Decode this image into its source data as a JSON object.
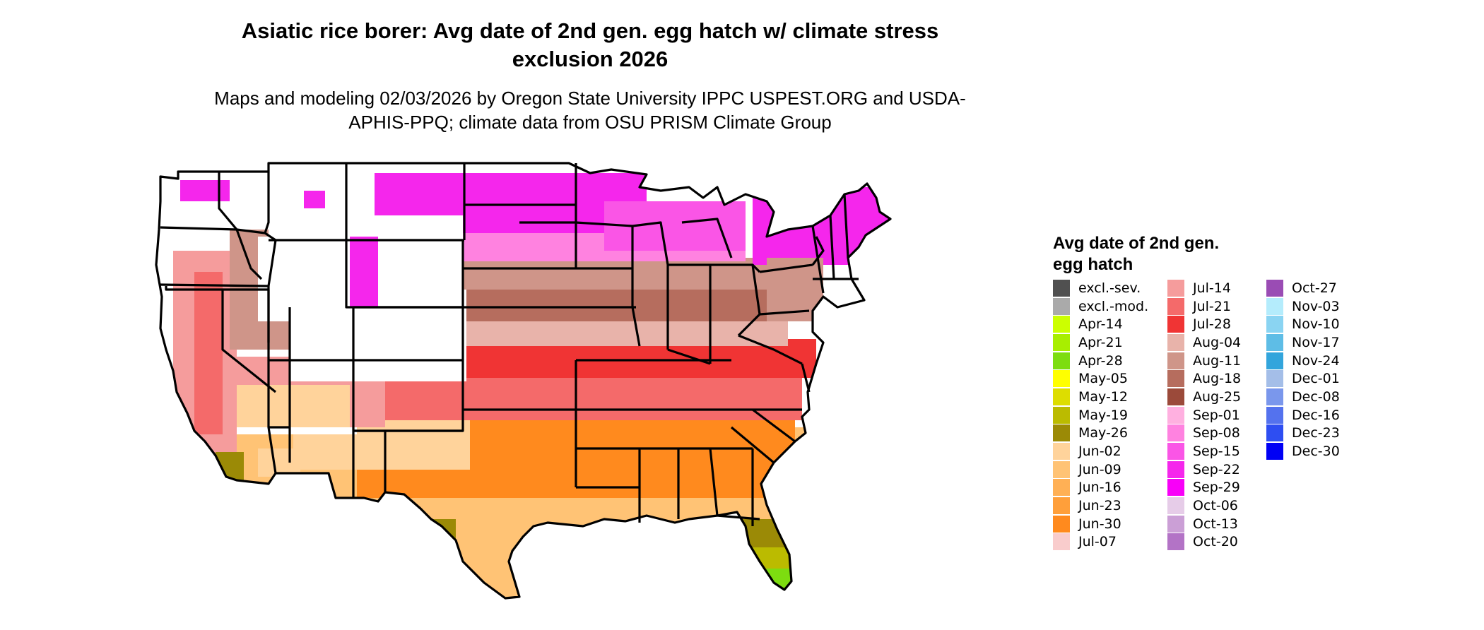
{
  "title": "Asiatic rice borer: Avg date of 2nd gen. egg hatch w/ climate stress exclusion 2026",
  "subtitle": "Maps and modeling 02/03/2026 by Oregon State University IPPC USPEST.ORG and USDA-APHIS-PPQ; climate data from OSU PRISM Climate Group",
  "legend": {
    "title": "Avg date of 2nd gen. egg hatch",
    "columns": [
      [
        {
          "label": "excl.-sev.",
          "color": "#505050"
        },
        {
          "label": "excl.-mod.",
          "color": "#aaaaaa"
        },
        {
          "label": "Apr-14",
          "color": "#ccff00"
        },
        {
          "label": "Apr-21",
          "color": "#a8ee00"
        },
        {
          "label": "Apr-28",
          "color": "#7ddd10"
        },
        {
          "label": "May-05",
          "color": "#ffff00"
        },
        {
          "label": "May-12",
          "color": "#dddd00"
        },
        {
          "label": "May-19",
          "color": "#bbbb00"
        },
        {
          "label": "May-26",
          "color": "#9b8a06"
        },
        {
          "label": "Jun-02",
          "color": "#ffd39b"
        },
        {
          "label": "Jun-09",
          "color": "#ffc375"
        },
        {
          "label": "Jun-16",
          "color": "#ffb055"
        },
        {
          "label": "Jun-23",
          "color": "#ff9f3a"
        },
        {
          "label": "Jun-30",
          "color": "#ff8a1e"
        },
        {
          "label": "Jul-07",
          "color": "#f9cccc"
        }
      ],
      [
        {
          "label": "Jul-14",
          "color": "#f59c9c"
        },
        {
          "label": "Jul-21",
          "color": "#f46a6a"
        },
        {
          "label": "Jul-28",
          "color": "#f03434"
        },
        {
          "label": "Aug-04",
          "color": "#e8b3aa"
        },
        {
          "label": "Aug-11",
          "color": "#cf9589"
        },
        {
          "label": "Aug-18",
          "color": "#b66d5e"
        },
        {
          "label": "Aug-25",
          "color": "#9b4a3a"
        },
        {
          "label": "Sep-01",
          "color": "#ffb0e0"
        },
        {
          "label": "Sep-08",
          "color": "#ff82e0"
        },
        {
          "label": "Sep-15",
          "color": "#fa55e6"
        },
        {
          "label": "Sep-22",
          "color": "#f526ec"
        },
        {
          "label": "Sep-29",
          "color": "#f800f8"
        },
        {
          "label": "Oct-06",
          "color": "#e6cce8"
        },
        {
          "label": "Oct-13",
          "color": "#cb9fd6"
        },
        {
          "label": "Oct-20",
          "color": "#b373c6"
        }
      ],
      [
        {
          "label": "Oct-27",
          "color": "#9a4cb4"
        },
        {
          "label": "Nov-03",
          "color": "#b4ecfc"
        },
        {
          "label": "Nov-10",
          "color": "#8ad4f2"
        },
        {
          "label": "Nov-17",
          "color": "#5ebde6"
        },
        {
          "label": "Nov-24",
          "color": "#32a5dc"
        },
        {
          "label": "Dec-01",
          "color": "#a4bee8"
        },
        {
          "label": "Dec-08",
          "color": "#7a97ec"
        },
        {
          "label": "Dec-16",
          "color": "#5472ee"
        },
        {
          "label": "Dec-23",
          "color": "#2e4ef2"
        },
        {
          "label": "Dec-30",
          "color": "#0000f5"
        }
      ]
    ]
  }
}
